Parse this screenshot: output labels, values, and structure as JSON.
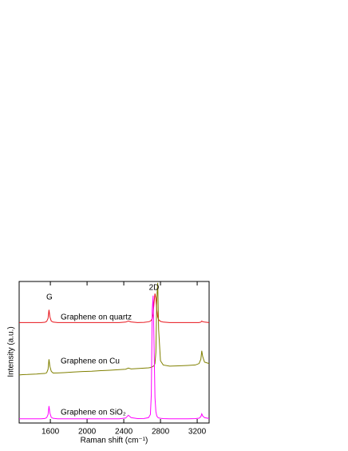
{
  "chart_data": {
    "type": "line",
    "x_label": "Raman shift (cm⁻¹)",
    "y_label": "Intensity (a.u.)",
    "annotations": [
      "G",
      "2D"
    ],
    "x": [
      1260,
      1300,
      1350,
      1400,
      1450,
      1500,
      1540,
      1560,
      1575,
      1585,
      1595,
      1610,
      1630,
      1680,
      1750,
      1850,
      1950,
      2050,
      2150,
      2250,
      2350,
      2420,
      2450,
      2480,
      2550,
      2620,
      2670,
      2690,
      2700,
      2710,
      2720,
      2730,
      2740,
      2750,
      2760,
      2770,
      2780,
      2800,
      2830,
      2900,
      3000,
      3100,
      3180,
      3220,
      3240,
      3250,
      3260,
      3280,
      3330
    ],
    "series": [
      {
        "name": "Graphene on quartz",
        "color": "#e8141b",
        "values": [
          71,
          71,
          71,
          71,
          71,
          71,
          71.2,
          71.8,
          74,
          80,
          75,
          72,
          71.3,
          71,
          71,
          71,
          71,
          71,
          71,
          71,
          71,
          71.3,
          72,
          71.4,
          71,
          71.1,
          71.5,
          72,
          72.6,
          73.8,
          77,
          85,
          91.5,
          88,
          80,
          75,
          73,
          71.8,
          71.3,
          71,
          71,
          71,
          71,
          71,
          71.3,
          72,
          71.6,
          71.3,
          71
        ]
      },
      {
        "name": "Graphene on Cu",
        "color": "#808000",
        "values": [
          34,
          34.2,
          34.3,
          34.5,
          34.6,
          34.9,
          35,
          35.5,
          38,
          45,
          40,
          36.5,
          35.3,
          35.4,
          35.6,
          36,
          36.4,
          36.6,
          37,
          37.3,
          37.7,
          38,
          38.8,
          38.2,
          38.5,
          38.8,
          39,
          39.2,
          39.4,
          39.7,
          40,
          40.6,
          42,
          50,
          88,
          99,
          66,
          44,
          41,
          40.2,
          40.4,
          40.7,
          41,
          42,
          45,
          51,
          47,
          43,
          42
        ]
      },
      {
        "name": "Graphene on SiO₂",
        "color": "#ff00ff",
        "values": [
          3,
          3,
          3,
          3,
          3,
          3,
          3.2,
          3.8,
          6,
          12,
          7,
          4,
          3.3,
          3,
          3,
          3,
          3,
          3,
          3,
          3,
          3,
          3.5,
          5.5,
          3.8,
          3.1,
          3.2,
          3.8,
          6,
          20,
          80,
          90,
          55,
          18,
          8,
          5,
          4,
          3.6,
          3.3,
          3.1,
          3,
          3,
          3,
          3.1,
          3.4,
          4.5,
          6.5,
          5,
          3.8,
          3.2
        ]
      }
    ],
    "xlim": [
      1260,
      3330
    ],
    "xticks": [
      1600,
      2000,
      2400,
      2800,
      3200
    ],
    "ylim": [
      0,
      100
    ]
  }
}
